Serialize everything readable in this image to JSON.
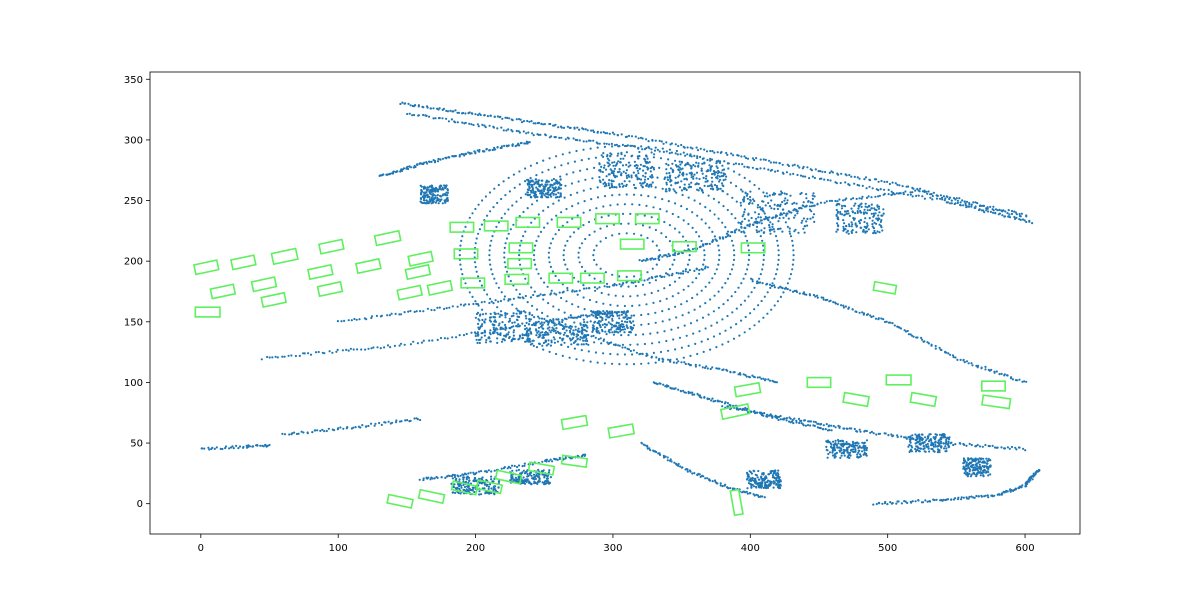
{
  "chart_data": {
    "type": "scatter",
    "title": "",
    "xlabel": "",
    "ylabel": "",
    "xlim": [
      -37,
      640
    ],
    "ylim": [
      -25,
      356
    ],
    "grid": false,
    "legend": "none",
    "x_ticks": [
      0,
      100,
      200,
      300,
      400,
      500,
      600
    ],
    "y_ticks": [
      0,
      50,
      100,
      150,
      200,
      250,
      300,
      350
    ],
    "colors": {
      "points": "#1f77b4",
      "boxes": "#5ef05e"
    },
    "series": [
      {
        "kind": "points",
        "note_rendering": "point-cloud lines approximated from the plot",
        "segments": [
          [
            [
              145,
              330
            ],
            [
              220,
              318
            ],
            [
              300,
              305
            ],
            [
              400,
              285
            ],
            [
              500,
              265
            ],
            [
              600,
              238
            ]
          ],
          [
            [
              150,
              322
            ],
            [
              240,
              305
            ],
            [
              330,
              292
            ],
            [
              430,
              272
            ],
            [
              540,
              250
            ],
            [
              605,
              232
            ]
          ],
          [
            [
              100,
              150
            ],
            [
              200,
              165
            ],
            [
              300,
              180
            ],
            [
              370,
              195
            ]
          ],
          [
            [
              45,
              120
            ],
            [
              140,
              130
            ],
            [
              250,
              150
            ],
            [
              300,
              158
            ]
          ],
          [
            [
              60,
              57
            ],
            [
              110,
              63
            ],
            [
              160,
              70
            ]
          ],
          [
            [
              0,
              45
            ],
            [
              30,
              47
            ],
            [
              50,
              48
            ]
          ],
          [
            [
              490,
              0
            ],
            [
              540,
              3
            ],
            [
              580,
              7
            ],
            [
              600,
              15
            ],
            [
              610,
              28
            ]
          ],
          [
            [
              130,
              270
            ],
            [
              160,
              280
            ],
            [
              200,
              290
            ],
            [
              240,
              298
            ]
          ],
          [
            [
              320,
              200
            ],
            [
              360,
              210
            ],
            [
              400,
              230
            ],
            [
              450,
              248
            ],
            [
              520,
              258
            ],
            [
              600,
              236
            ]
          ],
          [
            [
              230,
              160
            ],
            [
              280,
              140
            ],
            [
              330,
              120
            ],
            [
              380,
              110
            ],
            [
              420,
              100
            ]
          ],
          [
            [
              400,
              185
            ],
            [
              450,
              170
            ],
            [
              500,
              150
            ],
            [
              550,
              120
            ],
            [
              600,
              100
            ]
          ],
          [
            [
              380,
              80
            ],
            [
              430,
              70
            ],
            [
              480,
              60
            ],
            [
              540,
              50
            ],
            [
              600,
              45
            ]
          ],
          [
            [
              160,
              20
            ],
            [
              200,
              25
            ],
            [
              250,
              35
            ],
            [
              280,
              40
            ]
          ],
          [
            [
              320,
              50
            ],
            [
              350,
              30
            ],
            [
              380,
              15
            ],
            [
              410,
              5
            ]
          ],
          [
            [
              330,
              100
            ],
            [
              360,
              90
            ],
            [
              390,
              80
            ],
            [
              420,
              70
            ],
            [
              460,
              60
            ]
          ]
        ],
        "clusters": [
          [
            310,
            275,
            40,
            30
          ],
          [
            360,
            270,
            45,
            25
          ],
          [
            420,
            240,
            55,
            35
          ],
          [
            480,
            235,
            35,
            25
          ],
          [
            220,
            145,
            40,
            25
          ],
          [
            260,
            140,
            45,
            20
          ],
          [
            300,
            150,
            30,
            18
          ],
          [
            200,
            15,
            35,
            15
          ],
          [
            240,
            22,
            30,
            12
          ],
          [
            410,
            20,
            25,
            15
          ],
          [
            470,
            45,
            30,
            15
          ],
          [
            530,
            50,
            30,
            15
          ],
          [
            565,
            30,
            20,
            15
          ],
          [
            250,
            260,
            25,
            15
          ],
          [
            170,
            255,
            20,
            15
          ]
        ],
        "point_counts": [
          260,
          240,
          130,
          120,
          60,
          40,
          140,
          120,
          180,
          120,
          150,
          150,
          100,
          90,
          110
        ]
      },
      {
        "kind": "boxes",
        "boxes": [
          [
            4,
            195,
            17,
            8,
            -12
          ],
          [
            16,
            175,
            17,
            8,
            -12
          ],
          [
            31,
            199,
            17,
            8,
            -12
          ],
          [
            46,
            181,
            17,
            8,
            -12
          ],
          [
            53,
            168,
            17,
            8,
            -12
          ],
          [
            61,
            204,
            18,
            9,
            -12
          ],
          [
            87,
            191,
            17,
            8,
            -12
          ],
          [
            94,
            177,
            17,
            8,
            -12
          ],
          [
            95,
            212,
            17,
            8,
            -12
          ],
          [
            122,
            196,
            17,
            8,
            -12
          ],
          [
            136,
            219,
            18,
            8,
            -12
          ],
          [
            152,
            174,
            17,
            8,
            -12
          ],
          [
            158,
            191,
            17,
            8,
            -12
          ],
          [
            160,
            202,
            17,
            8,
            -12
          ],
          [
            174,
            178,
            17,
            8,
            -12
          ],
          [
            190,
            228,
            17,
            8,
            0
          ],
          [
            193,
            206,
            17,
            8,
            0
          ],
          [
            198,
            182,
            17,
            8,
            0
          ],
          [
            215,
            229,
            17,
            8,
            0
          ],
          [
            230,
            185,
            17,
            8,
            0
          ],
          [
            232,
            198,
            17,
            8,
            0
          ],
          [
            233,
            211,
            17,
            8,
            0
          ],
          [
            238,
            232,
            17,
            8,
            0
          ],
          [
            262,
            186,
            17,
            8,
            0
          ],
          [
            268,
            232,
            17,
            8,
            0
          ],
          [
            285,
            186,
            17,
            8,
            0
          ],
          [
            296,
            235,
            17,
            8,
            0
          ],
          [
            312,
            188,
            17,
            8,
            0
          ],
          [
            314,
            214,
            17,
            8,
            0
          ],
          [
            325,
            235,
            17,
            8,
            0
          ],
          [
            352,
            212,
            17,
            8,
            0
          ],
          [
            402,
            211,
            17,
            8,
            0
          ],
          [
            498,
            178,
            16,
            7,
            10
          ],
          [
            5,
            158,
            18,
            8,
            0
          ],
          [
            145,
            2,
            18,
            7,
            12
          ],
          [
            168,
            6,
            18,
            7,
            12
          ],
          [
            192,
            13,
            18,
            7,
            12
          ],
          [
            210,
            14,
            18,
            7,
            12
          ],
          [
            224,
            22,
            18,
            7,
            12
          ],
          [
            248,
            29,
            18,
            7,
            10
          ],
          [
            272,
            35,
            18,
            7,
            8
          ],
          [
            272,
            67,
            18,
            8,
            -10
          ],
          [
            306,
            60,
            18,
            8,
            -10
          ],
          [
            390,
            1,
            18,
            7,
            80
          ],
          [
            389,
            76,
            20,
            8,
            -12
          ],
          [
            398,
            94,
            18,
            8,
            -10
          ],
          [
            450,
            100,
            17,
            8,
            0
          ],
          [
            477,
            86,
            18,
            8,
            10
          ],
          [
            508,
            102,
            18,
            8,
            0
          ],
          [
            526,
            86,
            18,
            8,
            10
          ],
          [
            577,
            97,
            17,
            8,
            0
          ],
          [
            579,
            84,
            20,
            8,
            8
          ]
        ]
      }
    ]
  }
}
